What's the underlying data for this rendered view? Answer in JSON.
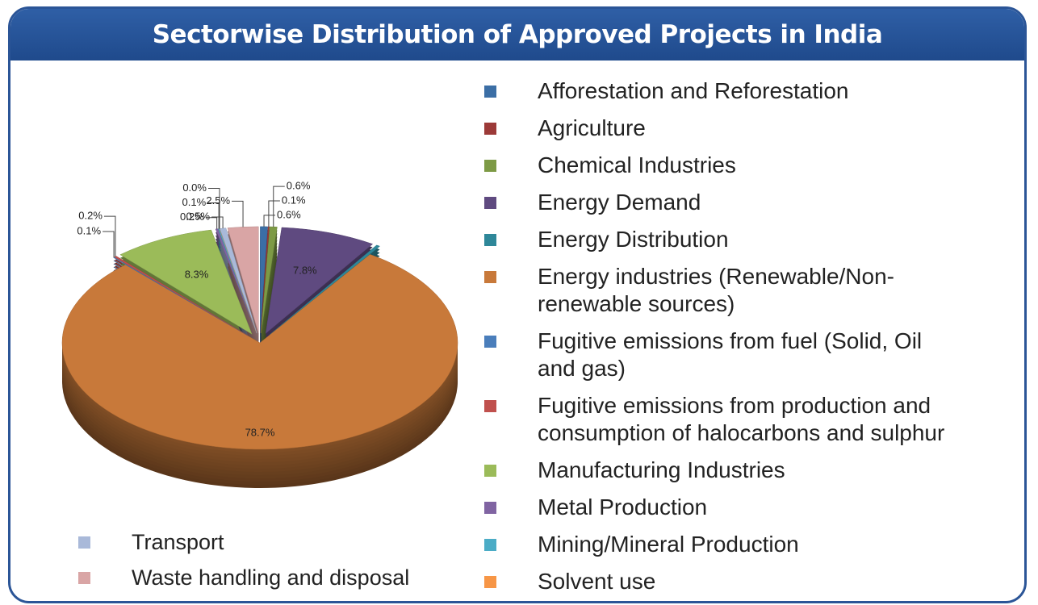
{
  "chart_data": {
    "type": "pie",
    "title": "Sectorwise Distribution of Approved Projects in India",
    "categories": [
      "Afforestation and Reforestation",
      "Agriculture",
      "Chemical Industries",
      "Energy Demand",
      "Energy Distribution",
      "Energy industries (Renewable/Non-renewable sources)",
      "Fugitive emissions from fuel (Solid, Oil and gas)",
      "Fugitive emissions from production and consumption of halocarbons and sulphur",
      "Manufacturing Industries",
      "Metal Production",
      "Mining/Mineral Production",
      "Solvent use",
      "Transport",
      "Waste handling and disposal"
    ],
    "values": [
      0.6,
      0.1,
      0.6,
      7.8,
      0.3,
      78.7,
      0.1,
      0.2,
      8.3,
      0.2,
      0.1,
      0.0,
      0.5,
      2.5
    ],
    "value_labels": [
      "0.6%",
      "0.1%",
      "0.6%",
      "7.8%",
      null,
      "78.7%",
      "0.1%",
      "0.2%",
      "8.3%",
      "0.2%",
      "0.1%",
      "0.0%",
      "0.5%",
      "2.5%"
    ],
    "colors": [
      "#3b6ea5",
      "#9c3a38",
      "#7d9a45",
      "#5f4a80",
      "#2e8799",
      "#c8793a",
      "#4a7ebb",
      "#c0504d",
      "#9bbb59",
      "#8064a2",
      "#4bacc6",
      "#f79646",
      "#a9b9d9",
      "#d9a5a5"
    ]
  }
}
